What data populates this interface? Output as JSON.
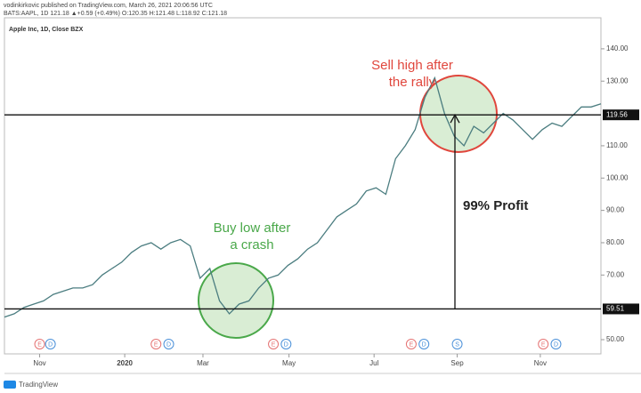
{
  "header": {
    "author_line": "vodinkirkovic published on TradingView.com, March 26, 2021 20:06:56 UTC",
    "quote_line": "BATS:AAPL, 1D 121.18 ▲+0.59 (+0.49%) O:120.35 H:121.48 L:118.92 C:121.18"
  },
  "footer": {
    "brand": "TradingView"
  },
  "chart_data": {
    "type": "line",
    "title": "Apple Inc, 1D, Close BZX",
    "series": [
      {
        "name": "AAPL",
        "color": "#4b7d80",
        "values": [
          57,
          58,
          60,
          61,
          62,
          64,
          65,
          66,
          66,
          67,
          70,
          72,
          74,
          77,
          79,
          80,
          78,
          80,
          81,
          79,
          69,
          72,
          62,
          58,
          61,
          62,
          66,
          69,
          70,
          73,
          75,
          78,
          80,
          84,
          88,
          90,
          92,
          96,
          97,
          95,
          106,
          110,
          115,
          125,
          131,
          120,
          113,
          110,
          116,
          114,
          117,
          120,
          118,
          115,
          112,
          115,
          117,
          116,
          119,
          122,
          122,
          123
        ]
      }
    ],
    "xlim": [
      0,
      61
    ],
    "xticks": [
      {
        "value": 3.6,
        "label": "Nov"
      },
      {
        "value": 12.3,
        "label": "2020"
      },
      {
        "value": 20.3,
        "label": "Mar"
      },
      {
        "value": 29.1,
        "label": "May"
      },
      {
        "value": 37.8,
        "label": "Jul"
      },
      {
        "value": 46.3,
        "label": "Sep"
      },
      {
        "value": 54.8,
        "label": "Nov"
      }
    ],
    "ylim": [
      45.6,
      149.6
    ],
    "yticks": [
      {
        "value": 50,
        "label": "50.00"
      },
      {
        "value": 70,
        "label": "70.00"
      },
      {
        "value": 80,
        "label": "80.00"
      },
      {
        "value": 90,
        "label": "90.00"
      },
      {
        "value": 100,
        "label": "100.00"
      },
      {
        "value": 110,
        "label": "110.00"
      },
      {
        "value": 130,
        "label": "130.00"
      },
      {
        "value": 140,
        "label": "140.00"
      }
    ],
    "levels": [
      119.56,
      59.51
    ],
    "events": [
      {
        "x": 3.6,
        "label": "E",
        "color": "#e57373"
      },
      {
        "x": 4.7,
        "label": "D",
        "color": "#4a90d9"
      },
      {
        "x": 15.5,
        "label": "E",
        "color": "#e57373"
      },
      {
        "x": 16.8,
        "label": "D",
        "color": "#4a90d9"
      },
      {
        "x": 27.5,
        "label": "E",
        "color": "#e57373"
      },
      {
        "x": 28.8,
        "label": "D",
        "color": "#4a90d9"
      },
      {
        "x": 41.6,
        "label": "E",
        "color": "#e57373"
      },
      {
        "x": 42.9,
        "label": "D",
        "color": "#4a90d9"
      },
      {
        "x": 46.3,
        "label": "S",
        "color": "#4a90d9"
      },
      {
        "x": 55.1,
        "label": "E",
        "color": "#e57373"
      },
      {
        "x": 56.4,
        "label": "D",
        "color": "#4a90d9"
      }
    ],
    "annotations": {
      "sell": [
        "Sell high after",
        "the rally"
      ],
      "buy": [
        "Buy low after",
        "a crash"
      ],
      "profit": "99% Profit"
    }
  }
}
